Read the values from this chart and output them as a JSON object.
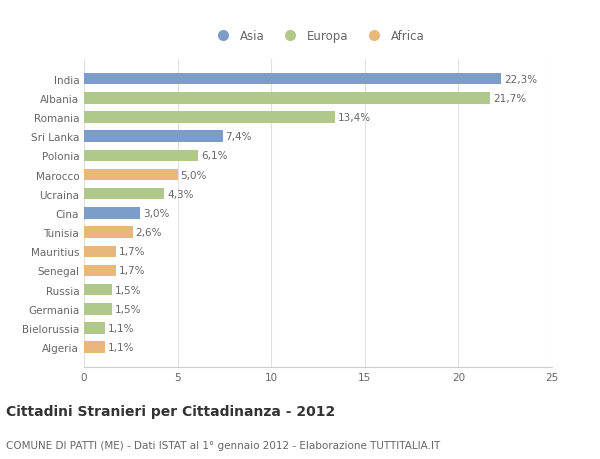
{
  "countries": [
    "India",
    "Albania",
    "Romania",
    "Sri Lanka",
    "Polonia",
    "Marocco",
    "Ucraina",
    "Cina",
    "Tunisia",
    "Mauritius",
    "Senegal",
    "Russia",
    "Germania",
    "Bielorussia",
    "Algeria"
  ],
  "values": [
    22.3,
    21.7,
    13.4,
    7.4,
    6.1,
    5.0,
    4.3,
    3.0,
    2.6,
    1.7,
    1.7,
    1.5,
    1.5,
    1.1,
    1.1
  ],
  "labels": [
    "22,3%",
    "21,7%",
    "13,4%",
    "7,4%",
    "6,1%",
    "5,0%",
    "4,3%",
    "3,0%",
    "2,6%",
    "1,7%",
    "1,7%",
    "1,5%",
    "1,5%",
    "1,1%",
    "1,1%"
  ],
  "continents": [
    "Asia",
    "Europa",
    "Europa",
    "Asia",
    "Europa",
    "Africa",
    "Europa",
    "Asia",
    "Africa",
    "Africa",
    "Africa",
    "Europa",
    "Europa",
    "Europa",
    "Africa"
  ],
  "colors": {
    "Asia": "#7b9dc8",
    "Europa": "#b0c88a",
    "Africa": "#e8b87a"
  },
  "xlim": [
    0,
    25
  ],
  "xticks": [
    0,
    5,
    10,
    15,
    20,
    25
  ],
  "title": "Cittadini Stranieri per Cittadinanza - 2012",
  "subtitle": "COMUNE DI PATTI (ME) - Dati ISTAT al 1° gennaio 2012 - Elaborazione TUTTITALIA.IT",
  "background_color": "#ffffff",
  "grid_color": "#e0e0e0",
  "bar_height": 0.6,
  "label_fontsize": 7.5,
  "tick_fontsize": 7.5,
  "title_fontsize": 10,
  "subtitle_fontsize": 7.5
}
